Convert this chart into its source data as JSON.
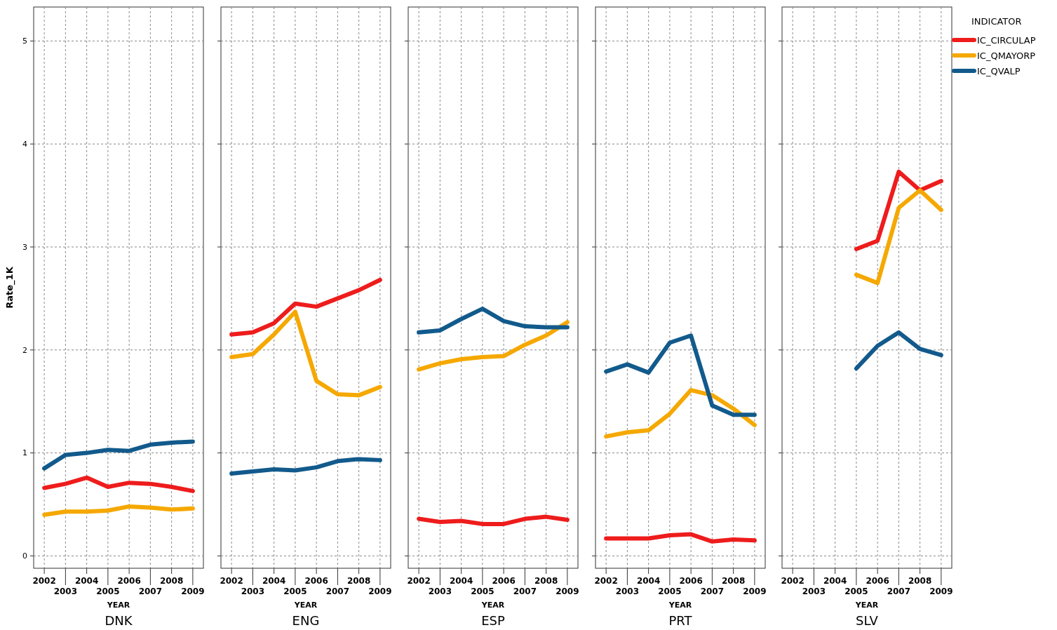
{
  "chart_data": [
    {
      "type": "line",
      "title": "DNK",
      "xlabel": "YEAR",
      "ylabel": "Rate_1K",
      "categories": [
        "2002",
        "2003",
        "2004",
        "2005",
        "2006",
        "2007",
        "2008",
        "2009"
      ],
      "ylim": [
        -0.12,
        5.33
      ],
      "yticks": [
        0,
        1,
        2,
        3,
        4,
        5
      ],
      "grid": true,
      "legend": false,
      "series": [
        {
          "color": "#ee1c1c",
          "values": [
            0.66,
            0.7,
            0.76,
            0.67,
            0.71,
            0.7,
            0.67,
            0.63
          ]
        },
        {
          "color": "#f5a800",
          "values": [
            0.4,
            0.43,
            0.43,
            0.44,
            0.48,
            0.47,
            0.45,
            0.46
          ]
        },
        {
          "color": "#125a8c",
          "values": [
            0.85,
            0.98,
            1.0,
            1.03,
            1.02,
            1.08,
            1.1,
            1.11
          ]
        }
      ]
    },
    {
      "type": "line",
      "title": "ENG",
      "xlabel": "YEAR",
      "categories": [
        "2002",
        "2003",
        "2004",
        "2005",
        "2006",
        "2007",
        "2008",
        "2009"
      ],
      "ylim": [
        -0.12,
        5.33
      ],
      "yticks": [
        0,
        1,
        2,
        3,
        4,
        5
      ],
      "tick_labels": "x",
      "grid": true,
      "legend": false,
      "series": [
        {
          "color": "#ee1c1c",
          "values": [
            2.15,
            2.17,
            2.26,
            2.45,
            2.42,
            2.5,
            2.58,
            2.68
          ]
        },
        {
          "color": "#f5a800",
          "values": [
            1.93,
            1.96,
            2.15,
            2.37,
            1.7,
            1.57,
            1.56,
            1.64
          ]
        },
        {
          "color": "#125a8c",
          "values": [
            0.8,
            0.82,
            0.84,
            0.83,
            0.86,
            0.92,
            0.94,
            0.93
          ]
        }
      ]
    },
    {
      "type": "line",
      "title": "ESP",
      "xlabel": "YEAR",
      "categories": [
        "2002",
        "2003",
        "2004",
        "2005",
        "2006",
        "2007",
        "2008",
        "2009"
      ],
      "ylim": [
        -0.12,
        5.33
      ],
      "yticks": [
        0,
        1,
        2,
        3,
        4,
        5
      ],
      "tick_labels": "x",
      "grid": true,
      "legend": false,
      "series": [
        {
          "color": "#ee1c1c",
          "values": [
            0.36,
            0.33,
            0.34,
            0.31,
            0.31,
            0.36,
            0.38,
            0.35
          ]
        },
        {
          "color": "#f5a800",
          "values": [
            1.81,
            1.87,
            1.91,
            1.93,
            1.94,
            2.05,
            2.14,
            2.27
          ]
        },
        {
          "color": "#125a8c",
          "values": [
            2.17,
            2.19,
            2.3,
            2.4,
            2.28,
            2.23,
            2.22,
            2.22
          ]
        }
      ]
    },
    {
      "type": "line",
      "title": "PRT",
      "xlabel": "YEAR",
      "categories": [
        "2002",
        "2003",
        "2004",
        "2005",
        "2006",
        "2007",
        "2008",
        "2009"
      ],
      "ylim": [
        -0.12,
        5.33
      ],
      "yticks": [
        0,
        1,
        2,
        3,
        4,
        5
      ],
      "tick_labels": "x",
      "grid": true,
      "legend": false,
      "series": [
        {
          "color": "#ee1c1c",
          "values": [
            0.17,
            0.17,
            0.17,
            0.2,
            0.21,
            0.14,
            0.16,
            0.15
          ]
        },
        {
          "color": "#f5a800",
          "values": [
            1.16,
            1.2,
            1.22,
            1.38,
            1.61,
            1.56,
            1.43,
            1.27
          ]
        },
        {
          "color": "#125a8c",
          "values": [
            1.79,
            1.86,
            1.78,
            2.07,
            2.14,
            1.46,
            1.37,
            1.37
          ]
        }
      ]
    },
    {
      "type": "line",
      "title": "SLV",
      "xlabel": "YEAR",
      "legend_title": "INDICATOR",
      "categories": [
        "2002",
        "2003",
        "2004",
        "2005",
        "2006",
        "2007",
        "2008",
        "2009"
      ],
      "ylim": [
        -0.12,
        5.33
      ],
      "yticks": [
        0,
        1,
        2,
        3,
        4,
        5
      ],
      "tick_labels": "x",
      "grid": true,
      "legend": "right",
      "series": [
        {
          "name": "IC_CIRCULAP",
          "color": "#ee1c1c",
          "values": [
            null,
            null,
            null,
            2.98,
            3.06,
            3.73,
            3.55,
            3.64
          ]
        },
        {
          "name": "IC_QMAYORP",
          "color": "#f5a800",
          "values": [
            null,
            null,
            null,
            2.73,
            2.65,
            3.38,
            3.55,
            3.36
          ]
        },
        {
          "name": "IC_QVALP",
          "color": "#125a8c",
          "values": [
            null,
            null,
            null,
            1.82,
            2.04,
            2.17,
            2.01,
            1.95
          ]
        }
      ]
    }
  ]
}
